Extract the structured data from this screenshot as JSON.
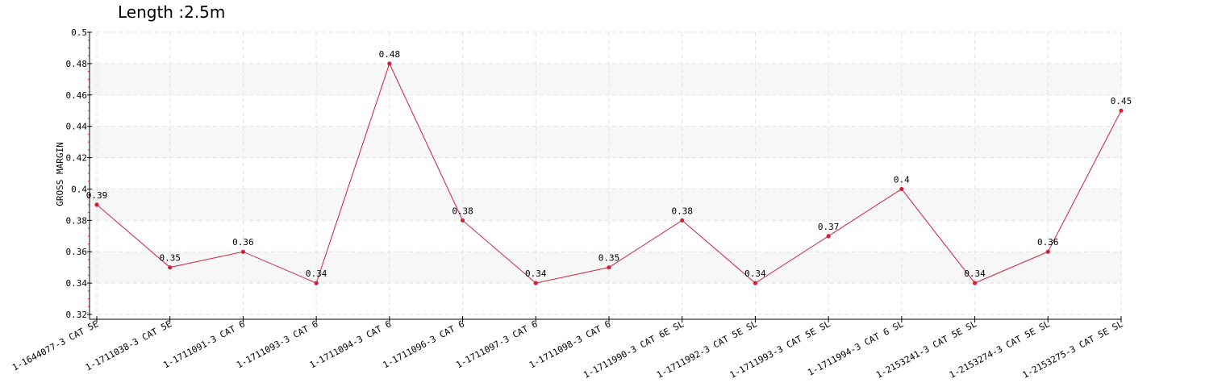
{
  "chart_data": {
    "type": "line",
    "title": "Length :2.5m",
    "xlabel": "",
    "ylabel": "GROSS MARGIN",
    "ylim": [
      0.32,
      0.5
    ],
    "yticks": [
      "0.32",
      "0.34",
      "0.36",
      "0.38",
      "0.4",
      "0.42",
      "0.44",
      "0.46",
      "0.48",
      "0.5"
    ],
    "categories": [
      "1-1644077-3 CAT 5E",
      "1-1711038-3 CAT 5E",
      "1-1711091-3 CAT 6",
      "1-1711093-3 CAT 6",
      "1-1711094-3 CAT 6",
      "1-1711096-3 CAT 6",
      "1-1711097-3 CAT 6",
      "1-1711098-3 CAT 6",
      "1-1711990-3 CAT 6E SL",
      "1-1711992-3 CAT 5E SL",
      "1-1711993-3 CAT 5E SL",
      "1-1711994-3 CAT 6 SL",
      "1-2153241-3 CAT 5E SL",
      "1-2153274-3 CAT 5E SL",
      "1-2153275-3 CAT 5E SL"
    ],
    "series": [
      {
        "values": [
          0.39,
          0.35,
          0.36,
          0.34,
          0.48,
          0.38,
          0.34,
          0.35,
          0.38,
          0.34,
          0.37,
          0.4,
          0.34,
          0.36,
          0.45
        ],
        "labels": [
          "0.39",
          "0.35",
          "0.36",
          "0.34",
          "0.48",
          "0.38",
          "0.34",
          "0.35",
          "0.38",
          "0.34",
          "0.37",
          "0.4",
          "0.34",
          "0.36",
          "0.45"
        ],
        "color": "#d0203a"
      }
    ],
    "grid": true,
    "band_color": "#f7f7f7"
  }
}
